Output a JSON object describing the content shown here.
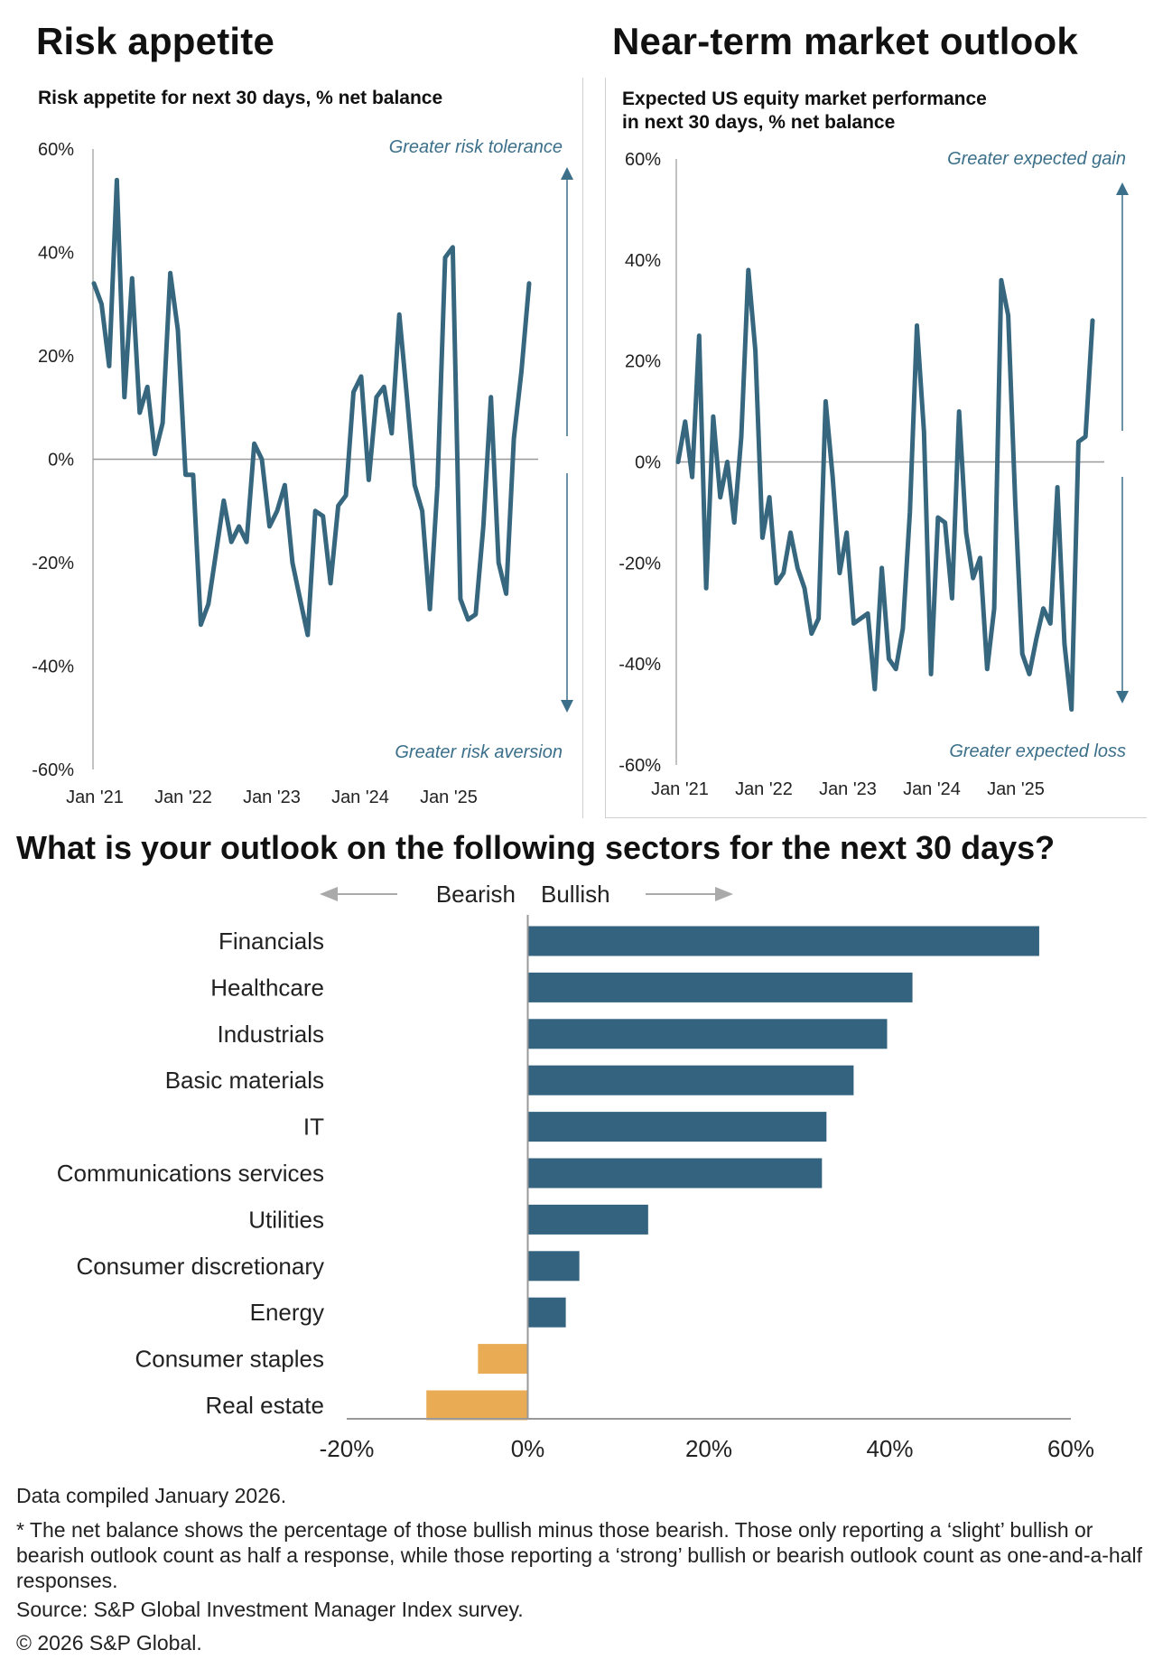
{
  "colors": {
    "line": "#36677f",
    "bull": "#33637f",
    "bear": "#e9ac55",
    "axis": "#999999",
    "annotation": "#3b6f8a"
  },
  "panels": {
    "risk": {
      "title": "Risk appetite",
      "subtitle": "Risk appetite for next 30 days, % net balance",
      "top_note": "Greater risk tolerance",
      "bottom_note": "Greater risk aversion"
    },
    "outlook": {
      "title": "Near-term market outlook",
      "subtitle_line1": "Expected US equity market performance",
      "subtitle_line2": "in next 30 days, % net balance",
      "top_note": "Greater expected gain",
      "bottom_note": "Greater  expected loss"
    },
    "sectors": {
      "title": "What is your outlook on the following sectors for the next 30 days?",
      "bearish_label": "Bearish",
      "bullish_label": "Bullish"
    }
  },
  "chart_data": [
    {
      "type": "line",
      "title": "Risk appetite",
      "subtitle": "Risk appetite for next 30 days, % net balance",
      "ylim": [
        -60,
        60
      ],
      "y_ticks": [
        "60%",
        "40%",
        "20%",
        "0%",
        "-20%",
        "-40%",
        "-60%"
      ],
      "x_ticks": [
        "Jan '21",
        "Jan '22",
        "Jan '23",
        "Jan '24",
        "Jan '25"
      ],
      "series": [
        {
          "name": "Risk appetite",
          "values": [
            34,
            30,
            18,
            54,
            12,
            35,
            9,
            14,
            1,
            7,
            36,
            25,
            -3,
            -3,
            -32,
            -28,
            -18,
            -8,
            -16,
            -13,
            -16,
            3,
            0,
            -13,
            -10,
            -5,
            -20,
            -27,
            -34,
            -10,
            -11,
            -24,
            -9,
            -7,
            13,
            16,
            -4,
            12,
            14,
            5,
            28,
            12,
            -5,
            -10,
            -29,
            -5,
            39,
            41,
            -27,
            -31,
            -30,
            -13,
            12,
            -20,
            -26,
            4,
            17,
            34
          ]
        }
      ],
      "annotations": [
        "Greater risk tolerance",
        "Greater risk aversion"
      ]
    },
    {
      "type": "line",
      "title": "Near-term market outlook",
      "subtitle": "Expected US equity market performance in next 30 days, % net balance",
      "ylim": [
        -60,
        60
      ],
      "y_ticks": [
        "60%",
        "40%",
        "20%",
        "0%",
        "-20%",
        "-40%",
        "-60%"
      ],
      "x_ticks": [
        "Jan '21",
        "Jan '22",
        "Jan '23",
        "Jan '24",
        "Jan '25"
      ],
      "series": [
        {
          "name": "Expected US equity market performance",
          "values": [
            0,
            8,
            -3,
            25,
            -25,
            9,
            -7,
            0,
            -12,
            5,
            38,
            22,
            -15,
            -7,
            -24,
            -22,
            -14,
            -21,
            -25,
            -34,
            -31,
            12,
            -3,
            -22,
            -14,
            -32,
            -31,
            -30,
            -45,
            -21,
            -39,
            -41,
            -33,
            -10,
            27,
            6,
            -42,
            -11,
            -12,
            -27,
            10,
            -14,
            -23,
            -19,
            -41,
            -29,
            36,
            29,
            -8,
            -38,
            -42,
            -35,
            -29,
            -32,
            -5,
            -36,
            -49,
            4,
            5,
            28
          ]
        }
      ],
      "annotations": [
        "Greater expected gain",
        "Greater  expected loss"
      ]
    },
    {
      "type": "bar",
      "orientation": "horizontal",
      "title": "What is your outlook on the following sectors for the next 30 days?",
      "categories": [
        "Financials",
        "Healthcare",
        "Industrials",
        "Basic materials",
        "IT",
        "Communications services",
        "Utilities",
        "Consumer discretionary",
        "Energy",
        "Consumer staples",
        "Real estate"
      ],
      "values": [
        56.5,
        42.5,
        39.7,
        36,
        33,
        32.5,
        13.3,
        5.7,
        4.2,
        -5.5,
        -11.2
      ],
      "xlim": [
        -20,
        60
      ],
      "x_ticks": [
        "-20%",
        "0%",
        "20%",
        "40%",
        "60%"
      ]
    }
  ],
  "footer": {
    "compiled": "Data compiled January 2026.",
    "note": "* The net balance shows the percentage of those bullish minus those bearish. Those only reporting a ‘slight’ bullish or bearish outlook count as half a response, while those reporting a ‘strong’ bullish or bearish outlook count as one-and-a-half responses.",
    "source": "Source: S&P Global Investment Manager Index survey.",
    "copyright": "© 2026 S&P Global."
  }
}
